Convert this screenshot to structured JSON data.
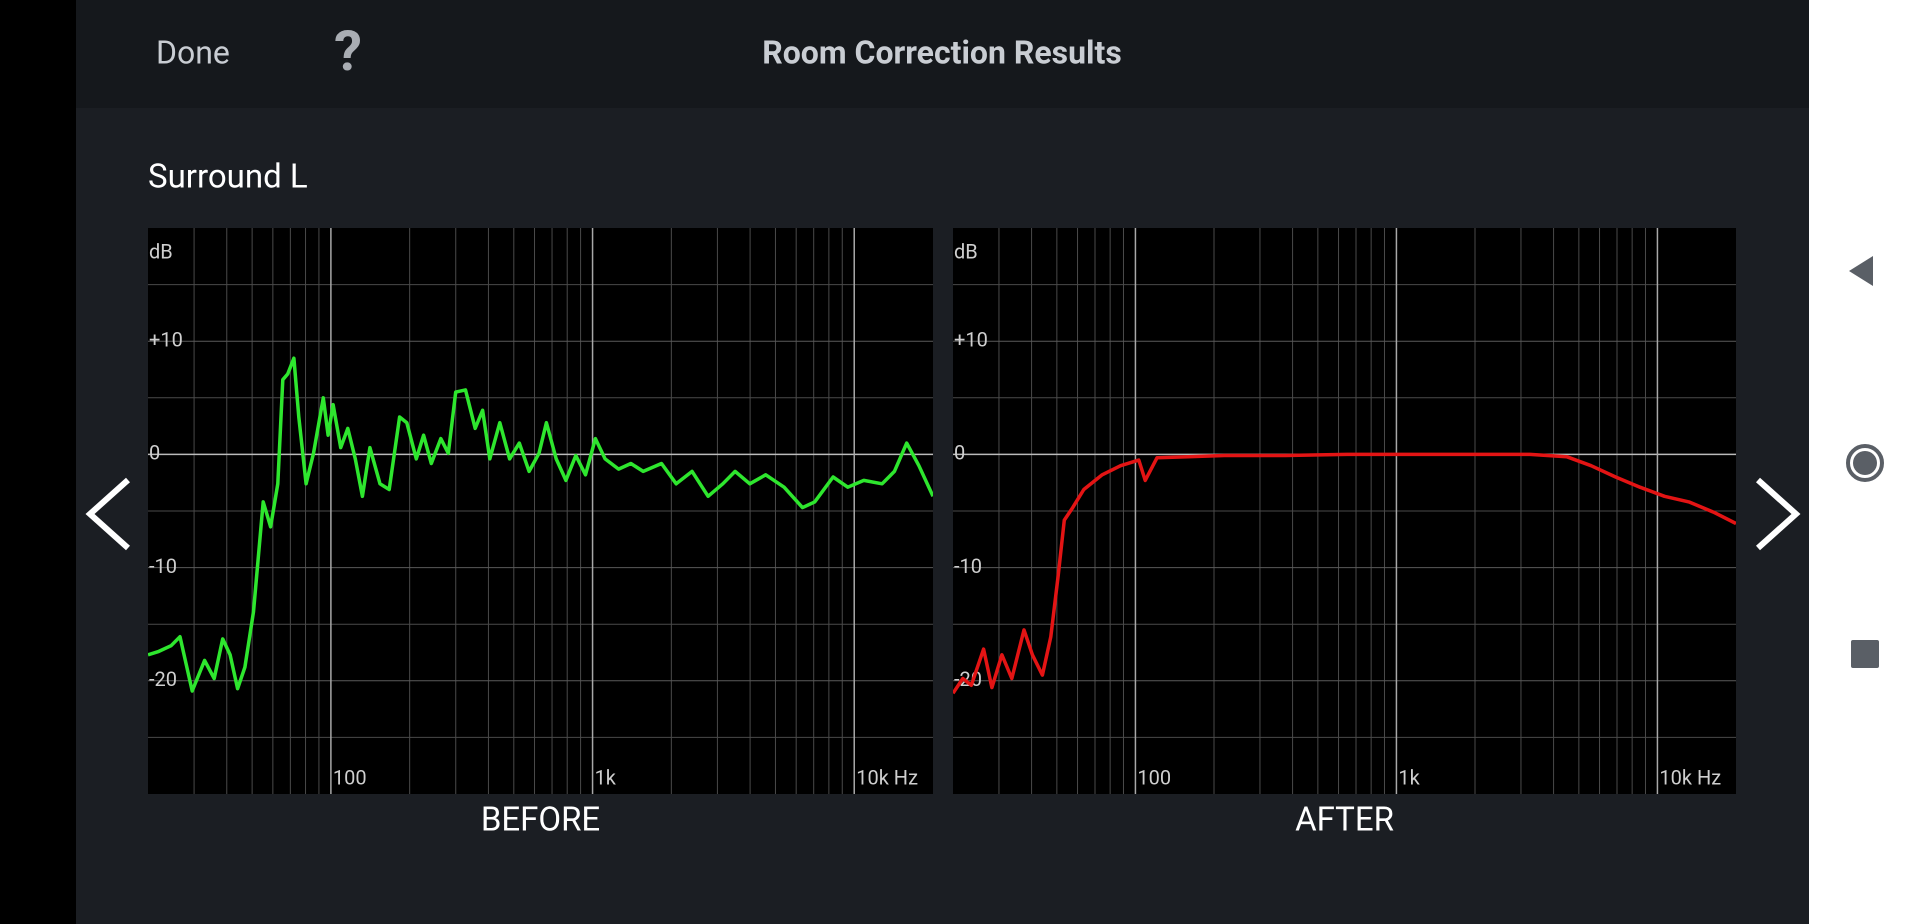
{
  "header": {
    "done": "Done",
    "help": "?",
    "title": "Room Correction Results"
  },
  "speaker": "Surround L",
  "chart_data": [
    {
      "type": "line",
      "title": "BEFORE",
      "ylabel": "dB",
      "xscale": "log",
      "xlim": [
        20,
        20000
      ],
      "ylim": [
        -30,
        20
      ],
      "xticks": [
        {
          "value": 100,
          "label": "100"
        },
        {
          "value": 1000,
          "label": "1k"
        },
        {
          "value": 10000,
          "label": "10k Hz"
        }
      ],
      "xgrid": [
        30,
        40,
        50,
        60,
        70,
        80,
        90,
        200,
        300,
        400,
        500,
        600,
        700,
        800,
        900,
        2000,
        3000,
        4000,
        5000,
        6000,
        7000,
        8000,
        9000
      ],
      "yticks": [
        {
          "value": 10,
          "label": "+10"
        },
        0,
        -10,
        -20
      ],
      "ygrid": [
        -25,
        -15,
        -5,
        5,
        15
      ],
      "series": [
        {
          "color": "#2ee62e",
          "x": [
            20,
            22,
            24.5,
            26.5,
            29.5,
            32.9,
            35.8,
            38.6,
            41.2,
            44,
            46.9,
            50.6,
            55.1,
            58.8,
            62.7,
            65.5,
            68.4,
            72.2,
            75.4,
            80.4,
            85.8,
            93.5,
            97.6,
            102,
            109,
            116,
            124,
            132,
            141,
            154,
            167,
            183,
            195,
            212,
            226,
            242,
            263,
            281,
            300,
            327,
            356,
            380,
            405,
            442,
            482,
            525,
            572,
            624,
            666,
            726,
            791,
            863,
            940,
            1025,
            1117,
            1258,
            1401,
            1561,
            1835,
            2088,
            2402,
            2764,
            3146,
            3504,
            3988,
            4590,
            5394,
            6342,
            7064,
            8304,
            9452,
            10876,
            12782,
            14240,
            15864,
            17670,
            20000
          ],
          "values": [
            -17.7,
            -17.4,
            -16.9,
            -16.1,
            -20.9,
            -18.2,
            -19.8,
            -16.3,
            -17.7,
            -20.7,
            -18.8,
            -13.9,
            -4.2,
            -6.4,
            -2.6,
            6.6,
            7.1,
            8.5,
            3.3,
            -2.6,
            0.1,
            5,
            1.7,
            4.4,
            0.6,
            2.3,
            -0.4,
            -3.7,
            0.6,
            -2.6,
            -3.1,
            3.3,
            2.8,
            -0.4,
            1.7,
            -0.8,
            1.4,
            0.1,
            5.5,
            5.7,
            2.3,
            3.9,
            -0.4,
            2.8,
            -0.4,
            1,
            -1.5,
            0.1,
            2.8,
            -0.4,
            -2.3,
            -0.1,
            -1.8,
            1.4,
            -0.4,
            -1.3,
            -0.8,
            -1.5,
            -0.8,
            -2.6,
            -1.5,
            -3.7,
            -2.6,
            -1.5,
            -2.6,
            -1.8,
            -2.9,
            -4.7,
            -4.2,
            -2,
            -2.9,
            -2.3,
            -2.6,
            -1.5,
            1,
            -1,
            -3.7
          ]
        }
      ]
    },
    {
      "type": "line",
      "title": "AFTER",
      "ylabel": "dB",
      "xscale": "log",
      "xlim": [
        20,
        20000
      ],
      "ylim": [
        -30,
        20
      ],
      "xticks": [
        {
          "value": 100,
          "label": "100"
        },
        {
          "value": 1000,
          "label": "1k"
        },
        {
          "value": 10000,
          "label": "10k Hz"
        }
      ],
      "xgrid": [
        30,
        40,
        50,
        60,
        70,
        80,
        90,
        200,
        300,
        400,
        500,
        600,
        700,
        800,
        900,
        2000,
        3000,
        4000,
        5000,
        6000,
        7000,
        8000,
        9000
      ],
      "yticks": [
        {
          "value": 10,
          "label": "+10"
        },
        0,
        -10,
        -20
      ],
      "ygrid": [
        -25,
        -15,
        -5,
        5,
        15
      ],
      "series": [
        {
          "color": "#e31414",
          "x": [
            20,
            21.8,
            23.5,
            26.2,
            28.2,
            30.8,
            33.6,
            37.4,
            40.3,
            44,
            47.4,
            50.6,
            53.4,
            57.5,
            63.4,
            74.6,
            87.7,
            103,
            109,
            121,
            159,
            219,
            376,
            645,
            1105,
            1895,
            3250,
            4490,
            5572,
            6912,
            8578,
            10642,
            13202,
            16378,
            20000
          ],
          "values": [
            -21.1,
            -19.8,
            -20.4,
            -17.2,
            -20.6,
            -17.7,
            -19.8,
            -15.5,
            -17.7,
            -19.5,
            -16.1,
            -10.7,
            -5.8,
            -4.7,
            -3.1,
            -1.8,
            -1,
            -0.5,
            -2.3,
            -0.3,
            -0.2,
            -0.1,
            -0.1,
            0,
            0,
            0,
            0,
            -0.2,
            -1,
            -2,
            -2.9,
            -3.7,
            -4.2,
            -5.1,
            -6.1
          ]
        }
      ]
    }
  ]
}
